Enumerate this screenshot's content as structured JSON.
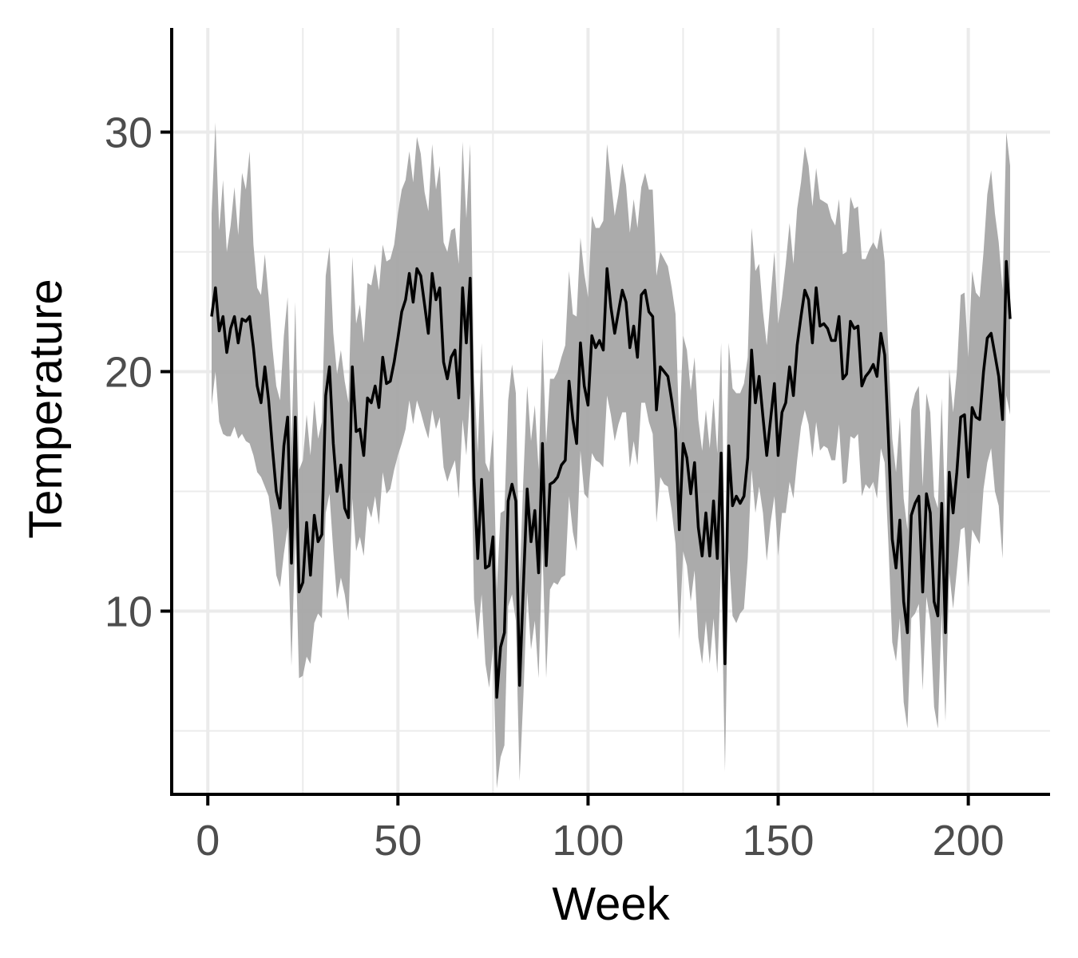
{
  "chart_data": {
    "type": "line",
    "title": "",
    "xlabel": "Week",
    "ylabel": "Temperature",
    "xlim": [
      -9.5,
      221.5
    ],
    "ylim": [
      2.35,
      34.35
    ],
    "x_ticks": [
      0,
      50,
      100,
      150,
      200
    ],
    "y_ticks": [
      10,
      20,
      30
    ],
    "grid": true,
    "legend": "none",
    "colors": {
      "line": "#000000",
      "band": "#a6a6a6",
      "grid": "#ebebeb",
      "axis": "#000000",
      "tick_text": "#4d4d4d"
    },
    "x": [
      1,
      2,
      3,
      4,
      5,
      6,
      7,
      8,
      9,
      10,
      11,
      12,
      13,
      14,
      15,
      16,
      17,
      18,
      19,
      20,
      21,
      22,
      23,
      24,
      25,
      26,
      27,
      28,
      29,
      30,
      31,
      32,
      33,
      34,
      35,
      36,
      37,
      38,
      39,
      40,
      41,
      42,
      43,
      44,
      45,
      46,
      47,
      48,
      49,
      50,
      51,
      52,
      53,
      54,
      55,
      56,
      57,
      58,
      59,
      60,
      61,
      62,
      63,
      64,
      65,
      66,
      67,
      68,
      69,
      70,
      71,
      72,
      73,
      74,
      75,
      76,
      77,
      78,
      79,
      80,
      81,
      82,
      83,
      84,
      85,
      86,
      87,
      88,
      89,
      90,
      91,
      92,
      93,
      94,
      95,
      96,
      97,
      98,
      99,
      100,
      101,
      102,
      103,
      104,
      105,
      106,
      107,
      108,
      109,
      110,
      111,
      112,
      113,
      114,
      115,
      116,
      117,
      118,
      119,
      120,
      121,
      122,
      123,
      124,
      125,
      126,
      127,
      128,
      129,
      130,
      131,
      132,
      133,
      134,
      135,
      136,
      137,
      138,
      139,
      140,
      141,
      142,
      143,
      144,
      145,
      146,
      147,
      148,
      149,
      150,
      151,
      152,
      153,
      154,
      155,
      156,
      157,
      158,
      159,
      160,
      161,
      162,
      163,
      164,
      165,
      166,
      167,
      168,
      169,
      170,
      171,
      172,
      173,
      174,
      175,
      176,
      177,
      178,
      179,
      180,
      181,
      182,
      183,
      184,
      185,
      186,
      187,
      188,
      189,
      190,
      191,
      192,
      193,
      194,
      195,
      196,
      197,
      198,
      199,
      200,
      201,
      202,
      203,
      204,
      205,
      206,
      207,
      208,
      209,
      210,
      211
    ],
    "series": [
      {
        "values": [
          22.3,
          23.5,
          21.7,
          22.3,
          20.8,
          21.8,
          22.3,
          21.2,
          22.2,
          22.1,
          22.3,
          21.0,
          19.4,
          18.7,
          20.2,
          18.8,
          16.8,
          15.0,
          14.3,
          16.9,
          18.1,
          12.0,
          18.1,
          10.8,
          11.2,
          13.7,
          11.5,
          14.0,
          12.9,
          13.2,
          19.0,
          20.2,
          17.0,
          15.0,
          16.1,
          14.3,
          13.9,
          20.2,
          17.5,
          17.6,
          16.5,
          18.9,
          18.7,
          19.4,
          18.5,
          20.6,
          19.5,
          19.6,
          20.4,
          21.4,
          22.5,
          23.0,
          24.1,
          22.9,
          24.3,
          24.0,
          22.8,
          21.6,
          24.1,
          23.0,
          23.5,
          20.4,
          19.7,
          20.6,
          20.9,
          18.9,
          23.5,
          21.2,
          23.9,
          15.5,
          12.2,
          15.5,
          11.8,
          11.9,
          13.1,
          6.4,
          8.5,
          9.1,
          14.6,
          15.3,
          14.6,
          6.9,
          11.1,
          15.1,
          12.9,
          14.2,
          11.6,
          17.0,
          11.9,
          15.3,
          15.4,
          15.6,
          16.1,
          16.3,
          19.6,
          18.0,
          17.0,
          21.2,
          19.4,
          18.6,
          21.5,
          21.0,
          21.3,
          20.9,
          24.3,
          22.7,
          21.6,
          22.5,
          23.4,
          22.9,
          21.0,
          21.9,
          20.6,
          23.2,
          23.4,
          22.5,
          22.3,
          18.4,
          20.2,
          20.0,
          19.8,
          18.8,
          17.6,
          13.4,
          17.0,
          16.4,
          14.9,
          16.2,
          13.5,
          12.3,
          14.1,
          12.3,
          14.6,
          12.2,
          16.6,
          7.8,
          16.9,
          14.4,
          14.8,
          14.5,
          14.8,
          16.4,
          20.9,
          18.7,
          19.8,
          18.1,
          16.5,
          18.0,
          19.5,
          16.5,
          18.3,
          18.7,
          20.2,
          19.0,
          21.1,
          22.3,
          23.4,
          23.0,
          21.2,
          23.5,
          21.9,
          22.0,
          21.8,
          21.3,
          21.3,
          22.3,
          19.7,
          19.9,
          22.1,
          21.8,
          21.9,
          19.4,
          19.8,
          20.0,
          20.3,
          19.8,
          21.6,
          20.7,
          17.2,
          13.0,
          11.8,
          13.8,
          10.4,
          9.1,
          14.0,
          14.5,
          14.8,
          10.8,
          14.9,
          14.1,
          10.4,
          9.8,
          14.5,
          9.1,
          15.8,
          14.1,
          15.8,
          18.1,
          18.2,
          15.6,
          18.5,
          18.1,
          18.0,
          20.0,
          21.4,
          21.6,
          20.7,
          19.8,
          18.0,
          24.6,
          22.2
        ]
      }
    ],
    "band_upper": [
      26.6,
      30.4,
      25.9,
      28.0,
      25.0,
      26.1,
      27.7,
      25.7,
      28.3,
      27.6,
      29.2,
      25.3,
      23.5,
      23.2,
      24.9,
      23.1,
      21.0,
      19.4,
      18.8,
      21.5,
      23.1,
      16.8,
      22.9,
      15.9,
      16.3,
      18.2,
      16.5,
      18.8,
      17.2,
      17.9,
      24.0,
      25.2,
      21.6,
      19.9,
      20.9,
      19.6,
      18.7,
      24.8,
      22.0,
      22.8,
      21.2,
      23.7,
      23.6,
      24.5,
      23.4,
      25.3,
      24.6,
      24.7,
      25.3,
      26.6,
      27.6,
      28.0,
      29.2,
      27.9,
      29.8,
      29.1,
      27.5,
      26.7,
      29.5,
      27.6,
      28.6,
      25.4,
      25.0,
      25.9,
      26.0,
      24.5,
      29.6,
      26.4,
      29.5,
      19.9,
      16.6,
      21.2,
      16.2,
      15.8,
      17.6,
      10.9,
      14.1,
      14.2,
      18.8,
      20.3,
      19.1,
      11.2,
      15.6,
      19.4,
      17.1,
      18.6,
      15.9,
      21.4,
      17.0,
      19.7,
      19.7,
      20.0,
      20.6,
      21.1,
      24.2,
      22.4,
      22.3,
      25.6,
      24.1,
      23.1,
      26.5,
      26.0,
      26.0,
      26.3,
      29.5,
      28.0,
      26.5,
      27.4,
      28.7,
      27.8,
      25.8,
      27.2,
      26.0,
      27.7,
      28.3,
      27.6,
      27.6,
      24.0,
      25.0,
      24.7,
      24.4,
      23.5,
      22.4,
      17.4,
      21.5,
      20.9,
      19.2,
      20.6,
      18.0,
      16.7,
      18.4,
      16.8,
      18.9,
      16.6,
      21.2,
      12.2,
      21.2,
      19.3,
      19.1,
      19.1,
      19.5,
      20.6,
      26.0,
      24.2,
      24.5,
      22.5,
      21.1,
      23.1,
      25.0,
      22.0,
      23.1,
      24.5,
      26.2,
      24.5,
      26.8,
      27.9,
      29.4,
      28.6,
      26.9,
      28.5,
      27.2,
      27.1,
      27.0,
      26.4,
      26.1,
      27.2,
      24.9,
      25.0,
      27.3,
      26.8,
      26.9,
      24.7,
      24.7,
      25.1,
      25.4,
      25.1,
      26.0,
      24.6,
      20.8,
      17.2,
      15.8,
      18.1,
      14.7,
      13.4,
      18.4,
      19.1,
      19.4,
      15.2,
      19.1,
      18.3,
      14.8,
      14.3,
      18.9,
      13.6,
      20.1,
      18.3,
      20.0,
      23.2,
      23.3,
      20.6,
      24.2,
      23.3,
      23.1,
      25.0,
      27.4,
      28.4,
      26.6,
      25.4,
      23.4,
      30.0,
      28.6
    ],
    "band_lower": [
      18.6,
      20.0,
      17.9,
      17.4,
      17.3,
      17.3,
      17.7,
      17.2,
      17.4,
      17.1,
      17.0,
      16.5,
      15.8,
      15.6,
      15.2,
      14.8,
      13.5,
      11.5,
      11.0,
      12.4,
      13.5,
      7.7,
      13.2,
      7.2,
      7.3,
      8.1,
      7.8,
      9.5,
      9.9,
      9.7,
      14.1,
      14.9,
      12.5,
      10.5,
      11.4,
      10.7,
      9.6,
      14.7,
      12.5,
      13.1,
      12.3,
      14.4,
      13.9,
      14.8,
      13.6,
      15.8,
      14.9,
      15.1,
      15.9,
      16.5,
      17.0,
      17.6,
      18.8,
      17.8,
      18.8,
      18.3,
      17.7,
      17.2,
      18.4,
      17.6,
      18.1,
      16.0,
      15.4,
      15.9,
      16.3,
      14.7,
      18.0,
      16.5,
      19.1,
      10.5,
      8.8,
      10.7,
      7.8,
      6.8,
      8.5,
      2.6,
      3.9,
      4.4,
      10.2,
      10.7,
      9.6,
      2.9,
      6.5,
      10.8,
      8.4,
      9.6,
      7.2,
      12.7,
      7.2,
      10.9,
      11.2,
      11.1,
      11.4,
      11.5,
      14.8,
      13.3,
      12.5,
      16.7,
      14.9,
      14.7,
      16.6,
      16.3,
      16.2,
      16.0,
      19.0,
      18.2,
      17.1,
      17.8,
      18.3,
      18.3,
      16.0,
      17.1,
      16.1,
      18.7,
      18.7,
      17.9,
      17.4,
      13.7,
      15.6,
      15.3,
      15.2,
      14.2,
      12.8,
      8.8,
      12.5,
      11.9,
      10.4,
      11.7,
      8.9,
      7.8,
      9.6,
      7.8,
      9.7,
      7.4,
      12.0,
      3.3,
      12.5,
      9.8,
      9.5,
      9.9,
      10.1,
      12.2,
      15.9,
      14.1,
      15.2,
      14.1,
      12.1,
      13.7,
      14.8,
      12.3,
      14.1,
      14.1,
      15.4,
      14.7,
      16.3,
      17.7,
      18.4,
      17.8,
      16.4,
      17.9,
      16.7,
      16.9,
      16.8,
      16.3,
      16.3,
      17.8,
      15.3,
      15.4,
      17.3,
      17.2,
      17.4,
      14.8,
      15.3,
      15.1,
      15.4,
      14.7,
      16.8,
      16.2,
      12.8,
      8.7,
      7.9,
      9.7,
      6.2,
      5.1,
      9.7,
      9.9,
      10.3,
      6.7,
      10.6,
      9.6,
      6.0,
      5.1,
      10.0,
      5.4,
      11.6,
      10.1,
      11.7,
      13.4,
      13.5,
      11.0,
      13.4,
      13.1,
      12.8,
      15.1,
      16.2,
      16.8,
      15.0,
      14.4,
      12.2,
      19.0,
      18.2
    ]
  }
}
